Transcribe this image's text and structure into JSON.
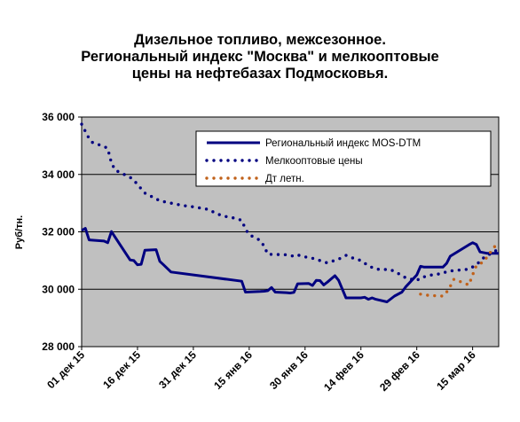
{
  "chart_data": {
    "type": "line",
    "title_lines": [
      "Дизельное топливо, межсезонное.",
      "Региональный индекс \"Москва\" и мелкооптовые",
      "цены на нефтебазах Подмосковья."
    ],
    "ylabel": "Руб/тн.",
    "xlabel": "",
    "ylim": [
      28000,
      36000
    ],
    "yticks": [
      28000,
      30000,
      32000,
      34000,
      36000
    ],
    "ytick_labels": [
      "28 000",
      "30 000",
      "32 000",
      "34 000",
      "36 000"
    ],
    "xticks": [
      {
        "x": "2015-12-01",
        "label": "01 дек 15"
      },
      {
        "x": "2015-12-16",
        "label": "16 дек 15"
      },
      {
        "x": "2015-12-31",
        "label": "31 дек 15"
      },
      {
        "x": "2016-01-15",
        "label": "15 янв 16"
      },
      {
        "x": "2016-01-30",
        "label": "30 янв 16"
      },
      {
        "x": "2016-02-14",
        "label": "14 фев 16"
      },
      {
        "x": "2016-02-29",
        "label": "29 фев 16"
      },
      {
        "x": "2016-03-15",
        "label": "15 мар 16"
      }
    ],
    "xlim": [
      "2015-12-01",
      "2016-03-22"
    ],
    "grid": {
      "horizontal": true,
      "vertical": false
    },
    "plot_background": "#c0c0c0",
    "legend_position": "top-right",
    "series": [
      {
        "name": "Региональный индекс MOS-DTM",
        "style": "solid",
        "color": "#000080",
        "points": [
          [
            "2015-12-01",
            32050
          ],
          [
            "2015-12-02",
            32120
          ],
          [
            "2015-12-03",
            31720
          ],
          [
            "2015-12-07",
            31680
          ],
          [
            "2015-12-08",
            31620
          ],
          [
            "2015-12-09",
            32010
          ],
          [
            "2015-12-14",
            31020
          ],
          [
            "2015-12-15",
            31000
          ],
          [
            "2015-12-16",
            30850
          ],
          [
            "2015-12-17",
            30870
          ],
          [
            "2015-12-18",
            31360
          ],
          [
            "2015-12-21",
            31380
          ],
          [
            "2015-12-22",
            30970
          ],
          [
            "2015-12-23",
            30850
          ],
          [
            "2015-12-25",
            30600
          ],
          [
            "2016-01-13",
            30280
          ],
          [
            "2016-01-14",
            29900
          ],
          [
            "2016-01-18",
            29920
          ],
          [
            "2016-01-19",
            29930
          ],
          [
            "2016-01-20",
            29950
          ],
          [
            "2016-01-21",
            30060
          ],
          [
            "2016-01-22",
            29900
          ],
          [
            "2016-01-25",
            29880
          ],
          [
            "2016-01-26",
            29870
          ],
          [
            "2016-01-27",
            29890
          ],
          [
            "2016-01-28",
            30190
          ],
          [
            "2016-01-31",
            30200
          ],
          [
            "2016-02-01",
            30130
          ],
          [
            "2016-02-02",
            30310
          ],
          [
            "2016-02-03",
            30300
          ],
          [
            "2016-02-04",
            30150
          ],
          [
            "2016-02-05",
            30250
          ],
          [
            "2016-02-07",
            30470
          ],
          [
            "2016-02-08",
            30310
          ],
          [
            "2016-02-10",
            29700
          ],
          [
            "2016-02-14",
            29700
          ],
          [
            "2016-02-15",
            29720
          ],
          [
            "2016-02-16",
            29650
          ],
          [
            "2016-02-17",
            29700
          ],
          [
            "2016-02-18",
            29650
          ],
          [
            "2016-02-21",
            29560
          ],
          [
            "2016-02-23",
            29760
          ],
          [
            "2016-02-25",
            29900
          ],
          [
            "2016-02-26",
            30080
          ],
          [
            "2016-02-29",
            30500
          ],
          [
            "2016-03-01",
            30800
          ],
          [
            "2016-03-02",
            30770
          ],
          [
            "2016-03-07",
            30770
          ],
          [
            "2016-03-08",
            30900
          ],
          [
            "2016-03-09",
            31150
          ],
          [
            "2016-03-14",
            31550
          ],
          [
            "2016-03-15",
            31620
          ],
          [
            "2016-03-16",
            31560
          ],
          [
            "2016-03-17",
            31300
          ],
          [
            "2016-03-19",
            31250
          ],
          [
            "2016-03-22",
            31250
          ]
        ]
      },
      {
        "name": "Мелкооптовые цены",
        "style": "dotted",
        "color": "#000080",
        "points": [
          [
            "2015-12-01",
            35750
          ],
          [
            "2015-12-02",
            35500
          ],
          [
            "2015-12-03",
            35250
          ],
          [
            "2015-12-04",
            35100
          ],
          [
            "2015-12-07",
            34980
          ],
          [
            "2015-12-08",
            34900
          ],
          [
            "2015-12-09",
            34400
          ],
          [
            "2015-12-10",
            34150
          ],
          [
            "2015-12-14",
            33900
          ],
          [
            "2015-12-15",
            33800
          ],
          [
            "2015-12-16",
            33650
          ],
          [
            "2015-12-17",
            33500
          ],
          [
            "2015-12-18",
            33350
          ],
          [
            "2015-12-21",
            33150
          ],
          [
            "2015-12-22",
            33080
          ],
          [
            "2015-12-25",
            33000
          ],
          [
            "2015-12-28",
            32920
          ],
          [
            "2015-12-31",
            32870
          ],
          [
            "2016-01-04",
            32780
          ],
          [
            "2016-01-06",
            32650
          ],
          [
            "2016-01-08",
            32550
          ],
          [
            "2016-01-11",
            32480
          ],
          [
            "2016-01-13",
            32400
          ],
          [
            "2016-01-14",
            32100
          ],
          [
            "2016-01-15",
            31900
          ],
          [
            "2016-01-18",
            31700
          ],
          [
            "2016-01-19",
            31500
          ],
          [
            "2016-01-20",
            31220
          ],
          [
            "2016-01-25",
            31200
          ],
          [
            "2016-01-27",
            31150
          ],
          [
            "2016-01-28",
            31200
          ],
          [
            "2016-01-29",
            31150
          ],
          [
            "2016-02-01",
            31080
          ],
          [
            "2016-02-03",
            31000
          ],
          [
            "2016-02-04",
            30950
          ],
          [
            "2016-02-05",
            30920
          ],
          [
            "2016-02-08",
            31050
          ],
          [
            "2016-02-10",
            31180
          ],
          [
            "2016-02-11",
            31130
          ],
          [
            "2016-02-12",
            31080
          ],
          [
            "2016-02-14",
            31000
          ],
          [
            "2016-02-16",
            30820
          ],
          [
            "2016-02-18",
            30700
          ],
          [
            "2016-02-22",
            30680
          ],
          [
            "2016-02-24",
            30550
          ],
          [
            "2016-02-26",
            30400
          ],
          [
            "2016-02-29",
            30300
          ],
          [
            "2016-03-01",
            30400
          ],
          [
            "2016-03-04",
            30500
          ],
          [
            "2016-03-07",
            30550
          ],
          [
            "2016-03-08",
            30620
          ],
          [
            "2016-03-10",
            30650
          ],
          [
            "2016-03-14",
            30700
          ],
          [
            "2016-03-16",
            30850
          ],
          [
            "2016-03-18",
            31100
          ],
          [
            "2016-03-22",
            31400
          ]
        ]
      },
      {
        "name": "Дт летн.",
        "style": "dotted",
        "color": "#c0611a",
        "points": [
          [
            "2016-03-01",
            29830
          ],
          [
            "2016-03-02",
            29800
          ],
          [
            "2016-03-04",
            29780
          ],
          [
            "2016-03-07",
            29760
          ],
          [
            "2016-03-08",
            29900
          ],
          [
            "2016-03-09",
            30100
          ],
          [
            "2016-03-10",
            30350
          ],
          [
            "2016-03-14",
            30150
          ],
          [
            "2016-03-15",
            30500
          ],
          [
            "2016-03-16",
            30820
          ],
          [
            "2016-03-18",
            30960
          ],
          [
            "2016-03-19",
            31150
          ],
          [
            "2016-03-21",
            31500
          ],
          [
            "2016-03-22",
            31600
          ]
        ]
      }
    ]
  }
}
